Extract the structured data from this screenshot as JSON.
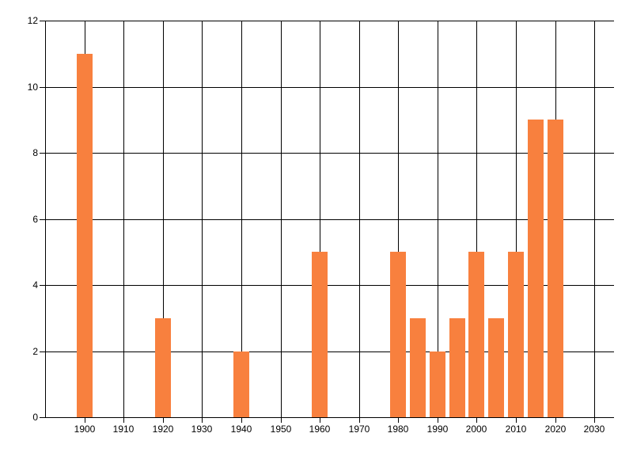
{
  "chart": {
    "background": "#FFFFFF",
    "title": ""
  },
  "chart_data": {
    "type": "bar",
    "x": [
      1900,
      1920,
      1940,
      1960,
      1980,
      1985,
      1990,
      1995,
      2000,
      2005,
      2010,
      2015,
      2020
    ],
    "values": [
      11,
      3,
      2,
      5,
      5,
      3,
      2,
      3,
      5,
      3,
      5,
      9,
      9
    ],
    "title": "",
    "xlabel": "",
    "ylabel": "",
    "xlim": [
      1890,
      2035
    ],
    "ylim": [
      0,
      12
    ],
    "xticks": [
      1900,
      1910,
      1920,
      1930,
      1940,
      1950,
      1960,
      1970,
      1980,
      1990,
      2000,
      2010,
      2020,
      2030
    ],
    "yticks": [
      0,
      2,
      4,
      6,
      8,
      10,
      12
    ],
    "bar_width_years": 4,
    "bar_color": "#F8803E",
    "grid": true,
    "grid_color": "#000000",
    "axis_color": "#000000",
    "tick_label_color": "#000000",
    "legend": "none"
  }
}
